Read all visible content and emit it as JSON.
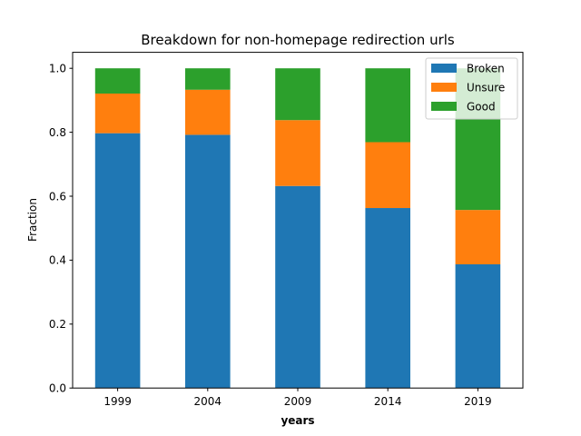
{
  "chart_data": {
    "type": "bar",
    "stacked": true,
    "title": "Breakdown for non-homepage redirection urls",
    "xlabel": "years",
    "ylabel": "Fraction",
    "categories": [
      "1999",
      "2004",
      "2009",
      "2014",
      "2019"
    ],
    "series": [
      {
        "name": "Broken",
        "color": "#1f77b4",
        "values": [
          0.797,
          0.792,
          0.632,
          0.563,
          0.387
        ]
      },
      {
        "name": "Unsure",
        "color": "#ff7f0e",
        "values": [
          0.124,
          0.141,
          0.206,
          0.206,
          0.17
        ]
      },
      {
        "name": "Good",
        "color": "#2ca02c",
        "values": [
          0.079,
          0.067,
          0.162,
          0.231,
          0.443
        ]
      }
    ],
    "ylim": [
      0,
      1.05
    ],
    "yticks": [
      "0.0",
      "0.2",
      "0.4",
      "0.6",
      "0.8",
      "1.0"
    ],
    "grid": false,
    "legend": "top-right"
  }
}
